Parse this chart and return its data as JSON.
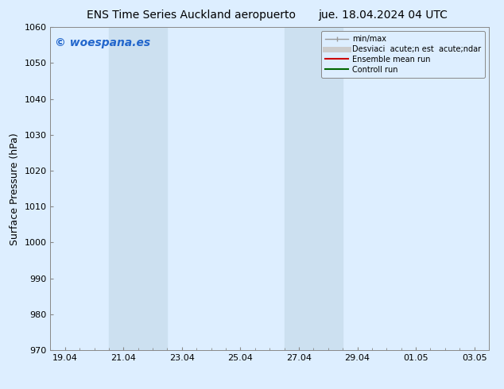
{
  "title_left": "ENS Time Series Auckland aeropuerto",
  "title_right": "jue. 18.04.2024 04 UTC",
  "ylabel": "Surface Pressure (hPa)",
  "ylim": [
    970,
    1060
  ],
  "yticks": [
    970,
    980,
    990,
    1000,
    1010,
    1020,
    1030,
    1040,
    1050,
    1060
  ],
  "xtick_labels": [
    "19.04",
    "21.04",
    "23.04",
    "25.04",
    "27.04",
    "29.04",
    "01.05",
    "03.05"
  ],
  "xtick_positions": [
    0,
    2,
    4,
    6,
    8,
    10,
    12,
    14
  ],
  "x_min": -0.5,
  "x_max": 14.5,
  "shaded_bands": [
    {
      "x_start": 1.5,
      "x_end": 3.5
    },
    {
      "x_start": 7.5,
      "x_end": 9.5
    }
  ],
  "shaded_color": "#cce0f0",
  "background_color": "#ddeeff",
  "plot_bg_color": "#ddeeff",
  "watermark_text": "© woespana.es",
  "watermark_color": "#2266cc",
  "legend_labels": [
    "min/max",
    "Desviaci  acute;n est  acute;ndar",
    "Ensemble mean run",
    "Controll run"
  ],
  "legend_colors": [
    "#999999",
    "#cccccc",
    "#cc0000",
    "#006600"
  ],
  "legend_lws": [
    1.0,
    5.0,
    1.5,
    1.5
  ],
  "title_fontsize": 10,
  "tick_fontsize": 8,
  "ylabel_fontsize": 9,
  "watermark_fontsize": 10,
  "legend_fontsize": 7,
  "figsize": [
    6.34,
    4.9
  ],
  "dpi": 100
}
